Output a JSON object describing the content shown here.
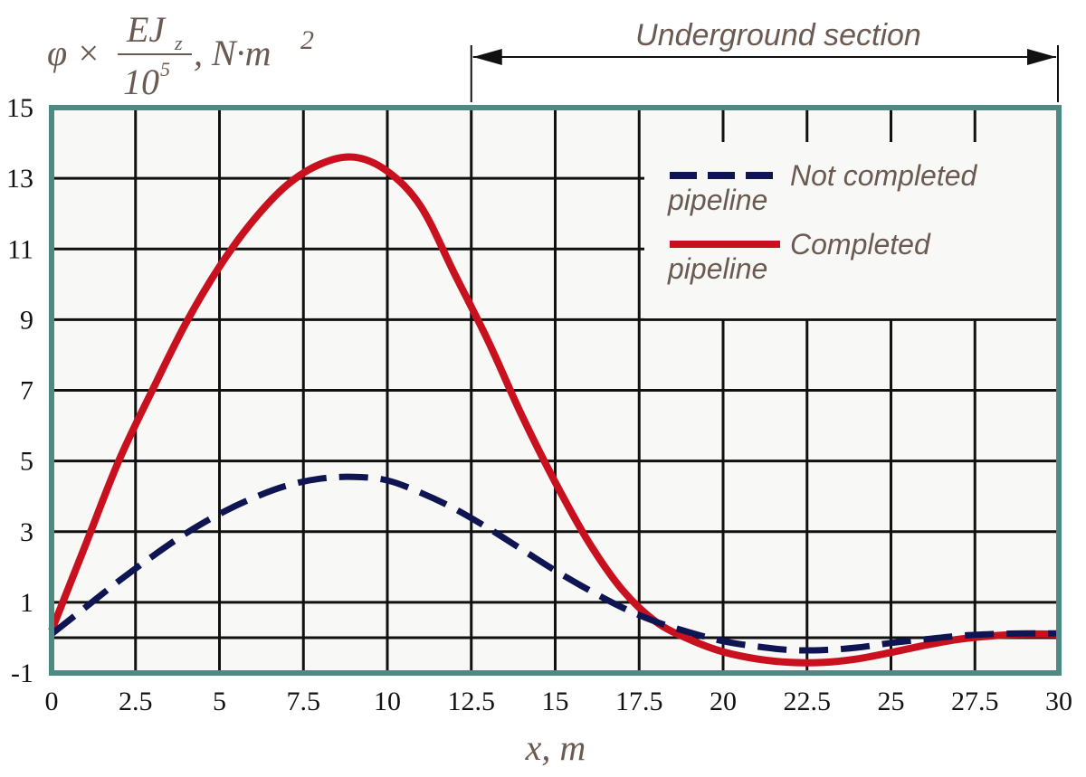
{
  "chart_data": {
    "type": "line",
    "xlabel": "x, m",
    "ylabel": {
      "prefix": "φ ×",
      "numerator": "EJ",
      "numerator_sub": "z",
      "denominator": "10",
      "denominator_sup": "5",
      "unit": ", N·m",
      "unit_sup": "2"
    },
    "xlim": [
      0,
      30
    ],
    "ylim": [
      -1,
      15
    ],
    "x_ticks": [
      "0",
      "2.5",
      "5",
      "7.5",
      "10",
      "12.5",
      "15",
      "17.5",
      "20",
      "22.5",
      "25",
      "27.5",
      "30"
    ],
    "y_ticks": [
      "-1",
      "1",
      "3",
      "5",
      "7",
      "9",
      "11",
      "13",
      "15"
    ],
    "grid": true,
    "legend_position": "top-right",
    "annotation": {
      "label": "Underground section",
      "x_start": 12.5,
      "x_end": 30
    },
    "series": [
      {
        "name_line1": "Not completed",
        "name_line2": "pipeline",
        "style": "dashed",
        "color": "#0f1553",
        "x": [
          0,
          1,
          2,
          3,
          4,
          5,
          6,
          7,
          8,
          9,
          10,
          11,
          12,
          13,
          14,
          15,
          16,
          17,
          18,
          19,
          20,
          21,
          22,
          23,
          24,
          25,
          26,
          27,
          28,
          29,
          30
        ],
        "y": [
          0.1,
          0.85,
          1.6,
          2.3,
          2.95,
          3.5,
          3.95,
          4.3,
          4.5,
          4.55,
          4.45,
          4.1,
          3.65,
          3.1,
          2.5,
          1.9,
          1.35,
          0.85,
          0.45,
          0.15,
          -0.1,
          -0.25,
          -0.35,
          -0.35,
          -0.28,
          -0.15,
          -0.05,
          0.05,
          0.1,
          0.12,
          0.12
        ]
      },
      {
        "name_line1": "Completed",
        "name_line2": "pipeline",
        "style": "solid",
        "color": "#c8101e",
        "x": [
          0,
          1,
          2,
          3,
          4,
          5,
          6,
          7,
          8,
          9,
          10,
          11,
          12,
          13,
          14,
          15,
          16,
          17,
          18,
          19,
          20,
          21,
          22,
          23,
          24,
          25,
          26,
          27,
          28,
          29,
          30
        ],
        "y": [
          0.2,
          2.6,
          5.0,
          7.0,
          8.9,
          10.5,
          11.8,
          12.8,
          13.4,
          13.6,
          13.2,
          12.2,
          10.3,
          8.4,
          6.3,
          4.4,
          2.7,
          1.35,
          0.45,
          -0.05,
          -0.4,
          -0.6,
          -0.7,
          -0.7,
          -0.6,
          -0.42,
          -0.22,
          -0.05,
          0.05,
          0.1,
          0.1
        ]
      }
    ]
  }
}
